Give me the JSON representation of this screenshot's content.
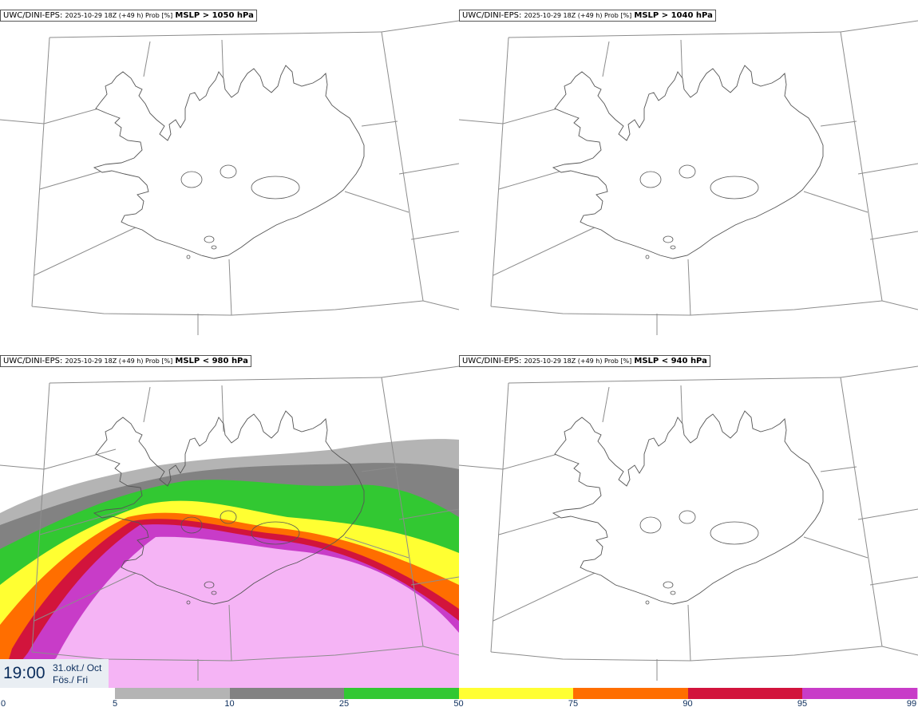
{
  "panels": [
    {
      "model": "UWC/DINI-EPS",
      "run": "2025-10-29 18Z (+49 h) Prob [%]",
      "field": "MSLP > 1050 hPa"
    },
    {
      "model": "UWC/DINI-EPS",
      "run": "2025-10-29 18Z (+49 h) Prob [%]",
      "field": "MSLP > 1040 hPa"
    },
    {
      "model": "UWC/DINI-EPS",
      "run": "2025-10-29 18Z (+49 h) Prob [%]",
      "field": "MSLP < 980 hPa"
    },
    {
      "model": "UWC/DINI-EPS",
      "run": "2025-10-29 18Z (+49 h) Prob [%]",
      "field": "MSLP < 940 hPa"
    }
  ],
  "valid_time": {
    "hour": "19:00",
    "date": "31.okt./ Oct",
    "weekday": "Fös./ Fri"
  },
  "legend": {
    "ticks": [
      "0",
      "5",
      "10",
      "25",
      "50",
      "75",
      "90",
      "95",
      "99"
    ],
    "colors": [
      "#ffffff",
      "#b4b4b4",
      "#828282",
      "#32c832",
      "#ffff32",
      "#ff6e00",
      "#d2143c",
      "#c83cc8",
      "#f5b4f5"
    ]
  },
  "prob_colors": {
    "p5": "#b4b4b4",
    "p10": "#828282",
    "p25": "#32c832",
    "p50": "#ffff32",
    "p75": "#ff6e00",
    "p90": "#d2143c",
    "p95": "#c83cc8",
    "p99": "#f5b4f5"
  },
  "colors": {
    "coast": "#555555",
    "grid": "#8c8c8c",
    "text": "#0b2d5c"
  }
}
